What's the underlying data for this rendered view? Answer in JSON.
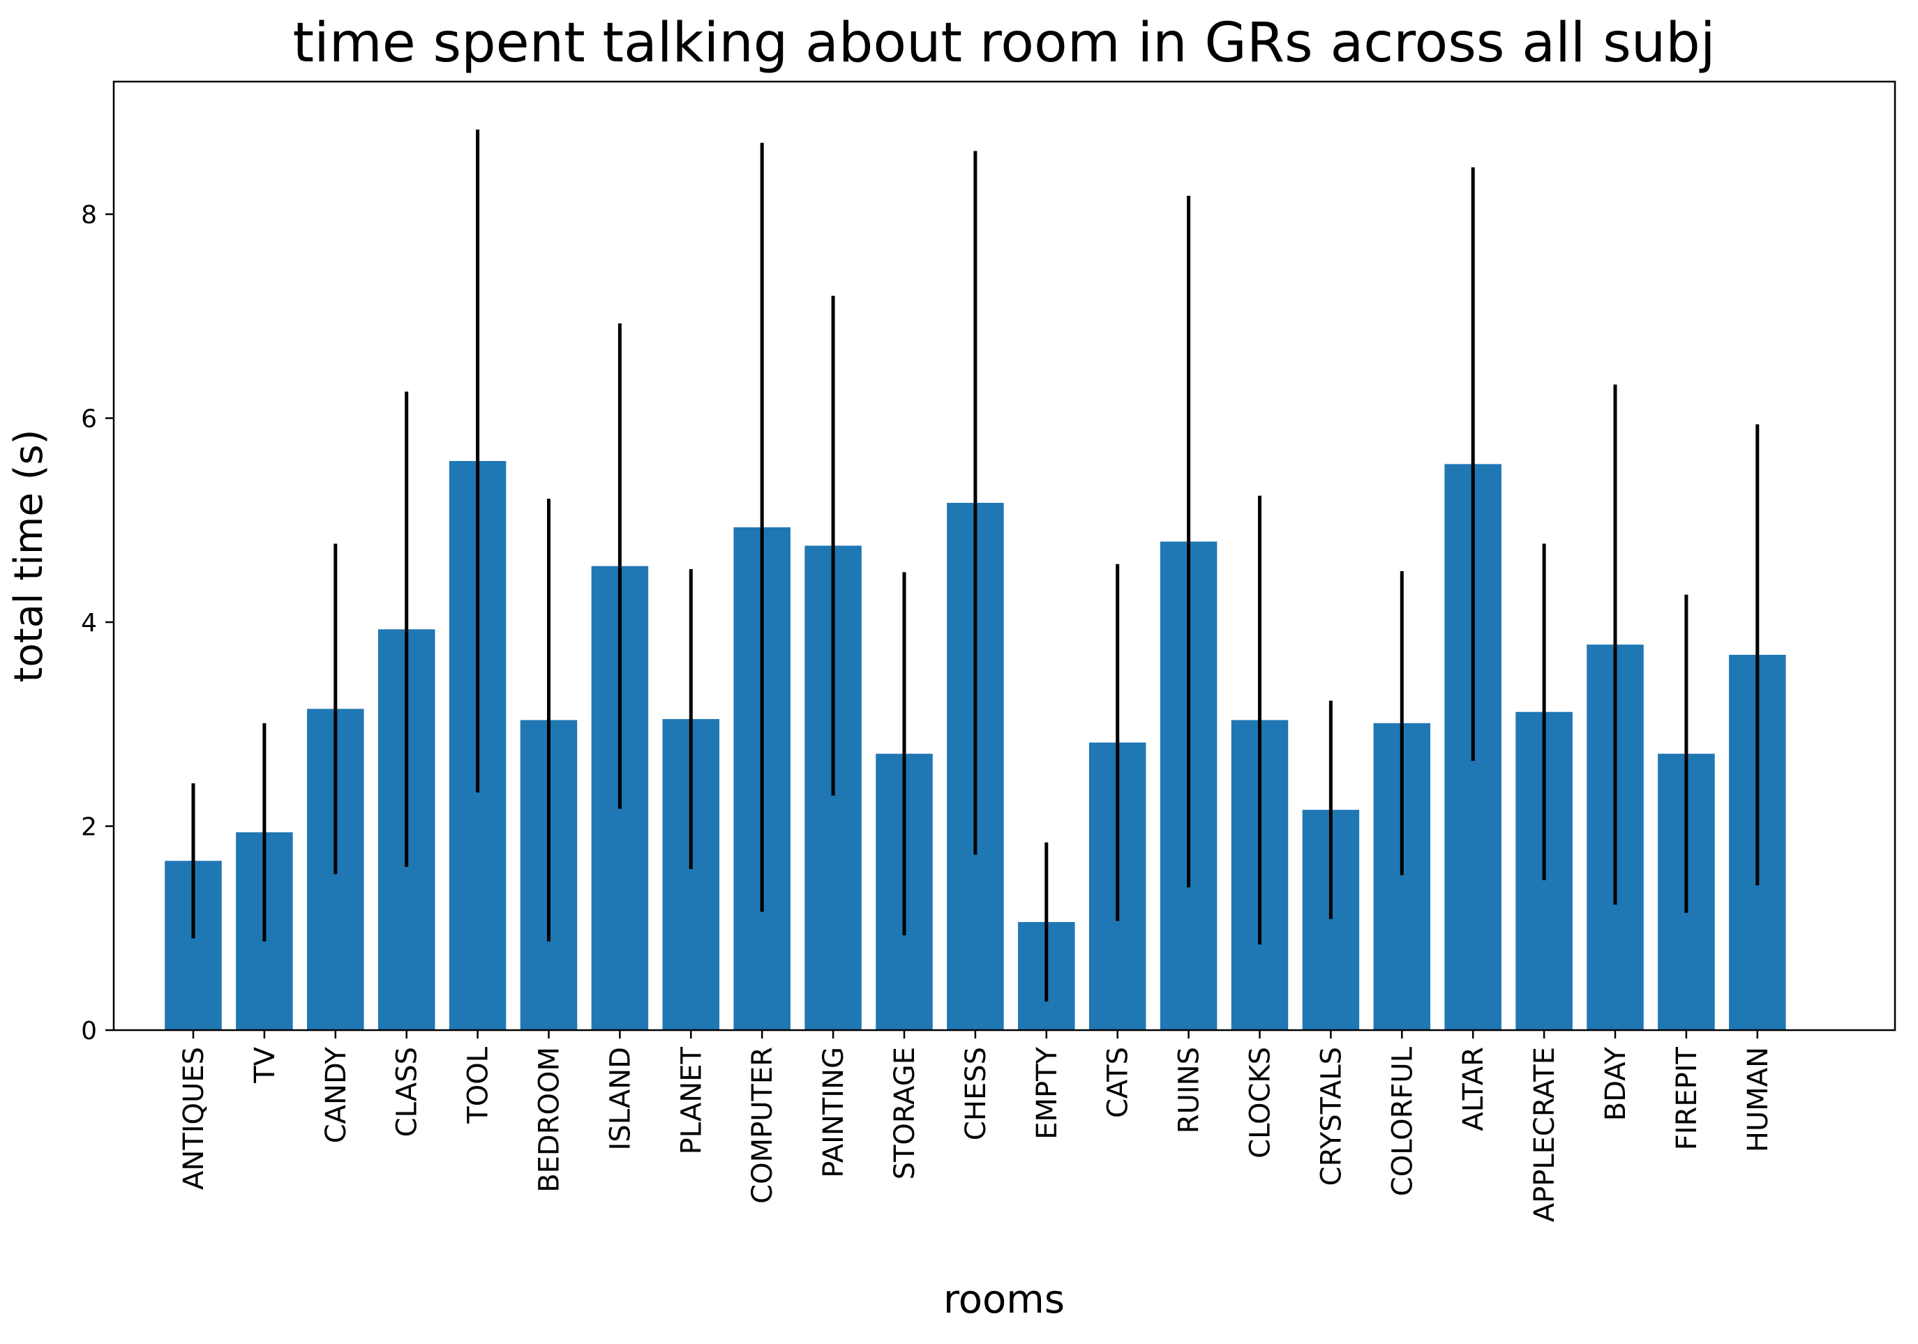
{
  "chart_data": {
    "type": "bar",
    "title": "time spent talking about room in GRs across all subj",
    "xlabel": "rooms",
    "ylabel": "total time (s)",
    "ylim": [
      0,
      9.3
    ],
    "yticks": [
      0,
      2,
      4,
      6,
      8
    ],
    "grid": false,
    "bar_color": "#1f77b4",
    "error_color": "#000000",
    "categories": [
      "ANTIQUES",
      "TV",
      "CANDY",
      "CLASS",
      "TOOL",
      "BEDROOM",
      "ISLAND",
      "PLANET",
      "COMPUTER",
      "PAINTING",
      "STORAGE",
      "CHESS",
      "EMPTY",
      "CATS",
      "RUINS",
      "CLOCKS",
      "CRYSTALS",
      "COLORFUL",
      "ALTAR",
      "APPLECRATE",
      "BDAY",
      "FIREPIT",
      "HUMAN"
    ],
    "values": [
      1.66,
      1.94,
      3.15,
      3.93,
      5.58,
      3.04,
      4.55,
      3.05,
      4.93,
      4.75,
      2.71,
      5.17,
      1.06,
      2.82,
      4.79,
      3.04,
      2.16,
      3.01,
      5.55,
      3.12,
      3.78,
      2.71,
      3.68
    ],
    "errors": [
      0.76,
      1.07,
      1.62,
      2.33,
      3.25,
      2.17,
      2.38,
      1.47,
      3.77,
      2.45,
      1.78,
      3.45,
      0.78,
      1.75,
      3.39,
      2.2,
      1.07,
      1.49,
      2.91,
      1.65,
      2.55,
      1.56,
      2.26
    ]
  }
}
